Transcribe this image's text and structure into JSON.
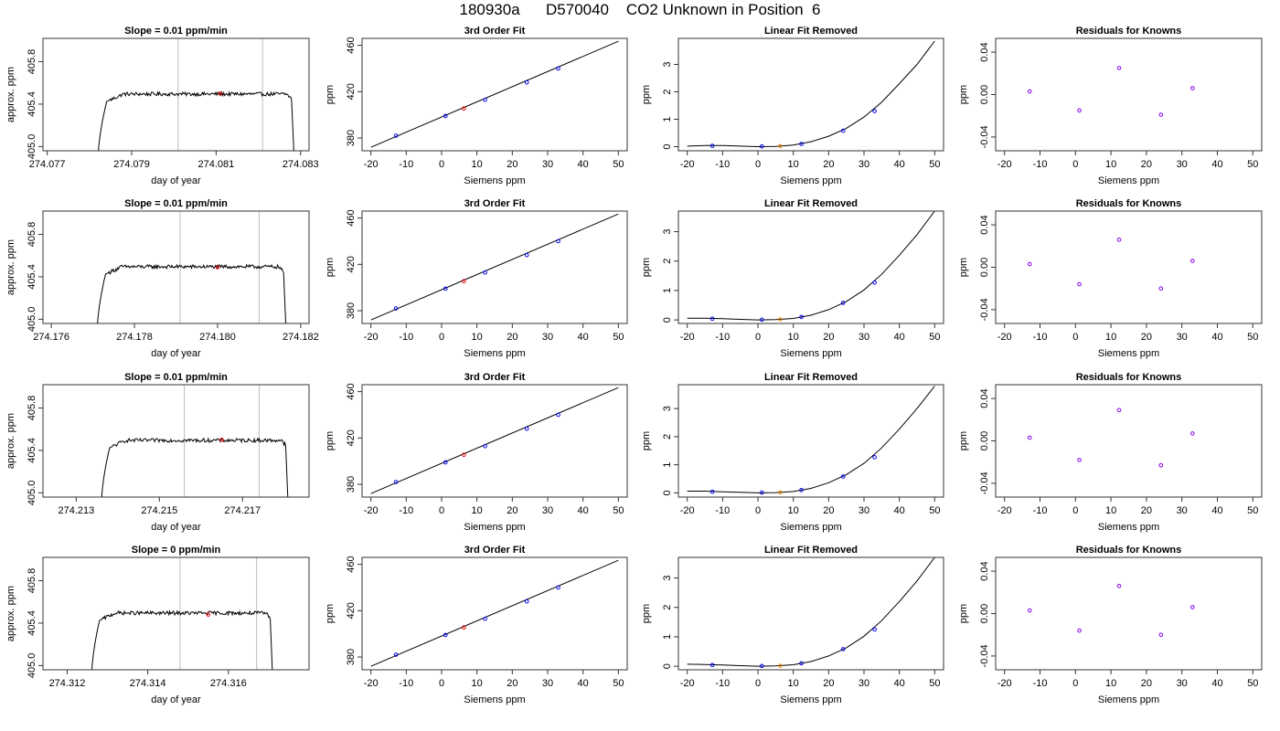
{
  "figure": {
    "title": "180930a      D570040    CO2 Unknown in Position  6",
    "colors": {
      "frame": "#333333",
      "line": "#000000",
      "vline": "#bbbbbb",
      "known": "#0000ee",
      "unknown": "#ee0000",
      "unknown_resid": "#ee8800",
      "resid": "#8800ee"
    }
  },
  "chart_data": [
    {
      "type": "line",
      "panel": "time-series",
      "row": 0,
      "title": "Slope =  0.01  ppm/min",
      "xlabel": "day of year",
      "ylabel": "approx. ppm",
      "xlim": [
        274.0769,
        274.0832
      ],
      "ylim": [
        404.96,
        406.02
      ],
      "xticks": [
        "274.077",
        "274.079",
        "274.081",
        "274.083"
      ],
      "xtick_values": [
        274.077,
        274.079,
        274.081,
        274.083
      ],
      "yticks": [
        "405.0",
        "405.4",
        "405.8"
      ],
      "ytick_values": [
        405.0,
        405.4,
        405.8
      ],
      "x_start": 274.0782,
      "x_end": 274.08285,
      "plateau": 405.495,
      "vlines": [
        274.0801,
        274.0821
      ],
      "marker": {
        "x": 274.0811,
        "y": 405.5
      }
    },
    {
      "type": "line",
      "panel": "time-series",
      "row": 1,
      "title": "Slope =  0.01  ppm/min",
      "xlabel": "day of year",
      "ylabel": "approx. ppm",
      "xlim": [
        274.1758,
        274.1822
      ],
      "ylim": [
        404.96,
        406.02
      ],
      "xticks": [
        "274.176",
        "274.178",
        "274.180",
        "274.182"
      ],
      "xtick_values": [
        274.176,
        274.178,
        274.18,
        274.182
      ],
      "yticks": [
        "405.0",
        "405.4",
        "405.8"
      ],
      "ytick_values": [
        405.0,
        405.4,
        405.8
      ],
      "x_start": 274.1771,
      "x_end": 274.18165,
      "plateau": 405.495,
      "vlines": [
        274.1791,
        274.181
      ],
      "marker": {
        "x": 274.18,
        "y": 405.49
      }
    },
    {
      "type": "line",
      "panel": "time-series",
      "row": 2,
      "title": "Slope =  0.01  ppm/min",
      "xlabel": "day of year",
      "ylabel": "approx. ppm",
      "xlim": [
        274.2122,
        274.2186
      ],
      "ylim": [
        404.96,
        406.02
      ],
      "xticks": [
        "274.213",
        "274.215",
        "274.217"
      ],
      "xtick_values": [
        274.213,
        274.215,
        274.217
      ],
      "yticks": [
        "405.0",
        "405.4",
        "405.8"
      ],
      "ytick_values": [
        405.0,
        405.4,
        405.8
      ],
      "x_start": 274.2136,
      "x_end": 274.2181,
      "plateau": 405.495,
      "vlines": [
        274.2156,
        274.2174
      ],
      "marker": {
        "x": 274.2165,
        "y": 405.5
      }
    },
    {
      "type": "line",
      "panel": "time-series",
      "row": 3,
      "title": "Slope =  0  ppm/min",
      "xlabel": "day of year",
      "ylabel": "approx. ppm",
      "xlim": [
        274.3114,
        274.318
      ],
      "ylim": [
        404.96,
        406.02
      ],
      "xticks": [
        "274.312",
        "274.314",
        "274.316"
      ],
      "xtick_values": [
        274.312,
        274.314,
        274.316
      ],
      "yticks": [
        "405.0",
        "405.4",
        "405.8"
      ],
      "ytick_values": [
        405.0,
        405.4,
        405.8
      ],
      "x_start": 274.3126,
      "x_end": 274.3171,
      "plateau": 405.495,
      "vlines": [
        274.3148,
        274.3167
      ],
      "marker": {
        "x": 274.3155,
        "y": 405.48
      }
    },
    {
      "type": "scatter",
      "panel": "fit",
      "row": 0,
      "title": "3rd Order Fit",
      "xlabel": "Siemens ppm",
      "ylabel": "ppm",
      "xlim": [
        -22.5,
        52.5
      ],
      "ylim": [
        369,
        466
      ],
      "xticks": [
        "-20",
        "-10",
        "0",
        "10",
        "20",
        "30",
        "40",
        "50"
      ],
      "xtick_values": [
        -20,
        -10,
        0,
        10,
        20,
        30,
        40,
        50
      ],
      "yticks": [
        "380",
        "420",
        "460"
      ],
      "ytick_values": [
        380,
        420,
        460
      ],
      "fit_line": {
        "x": [
          -20,
          50
        ],
        "y": [
          372.0,
          463.5
        ]
      },
      "knowns": {
        "x": [
          -12.9,
          1.1,
          12.3,
          24.1,
          33.0
        ],
        "y": [
          382.0,
          399.0,
          413.0,
          428.0,
          440.0
        ]
      },
      "unknown": {
        "x": 6.3,
        "y": 405.5
      }
    },
    {
      "type": "scatter",
      "panel": "fit",
      "row": 1,
      "title": "3rd Order Fit",
      "xlabel": "Siemens ppm",
      "ylabel": "ppm",
      "xlim": [
        -22.5,
        52.5
      ],
      "ylim": [
        369,
        466
      ],
      "xticks": [
        "-20",
        "-10",
        "0",
        "10",
        "20",
        "30",
        "40",
        "50"
      ],
      "xtick_values": [
        -20,
        -10,
        0,
        10,
        20,
        30,
        40,
        50
      ],
      "yticks": [
        "380",
        "420",
        "460"
      ],
      "ytick_values": [
        380,
        420,
        460
      ],
      "fit_line": {
        "x": [
          -20,
          50
        ],
        "y": [
          372.0,
          463.5
        ]
      },
      "knowns": {
        "x": [
          -12.9,
          1.1,
          12.3,
          24.1,
          33.0
        ],
        "y": [
          382.0,
          399.0,
          413.0,
          428.0,
          440.0
        ]
      },
      "unknown": {
        "x": 6.3,
        "y": 405.5
      }
    },
    {
      "type": "scatter",
      "panel": "fit",
      "row": 2,
      "title": "3rd Order Fit",
      "xlabel": "Siemens ppm",
      "ylabel": "ppm",
      "xlim": [
        -22.5,
        52.5
      ],
      "ylim": [
        369,
        466
      ],
      "xticks": [
        "-20",
        "-10",
        "0",
        "10",
        "20",
        "30",
        "40",
        "50"
      ],
      "xtick_values": [
        -20,
        -10,
        0,
        10,
        20,
        30,
        40,
        50
      ],
      "yticks": [
        "380",
        "420",
        "460"
      ],
      "ytick_values": [
        380,
        420,
        460
      ],
      "fit_line": {
        "x": [
          -20,
          50
        ],
        "y": [
          372.0,
          463.5
        ]
      },
      "knowns": {
        "x": [
          -12.9,
          1.1,
          12.3,
          24.1,
          33.0
        ],
        "y": [
          382.0,
          399.0,
          413.0,
          428.0,
          440.0
        ]
      },
      "unknown": {
        "x": 6.3,
        "y": 405.5
      }
    },
    {
      "type": "scatter",
      "panel": "fit",
      "row": 3,
      "title": "3rd Order Fit",
      "xlabel": "Siemens ppm",
      "ylabel": "ppm",
      "xlim": [
        -22.5,
        52.5
      ],
      "ylim": [
        369,
        466
      ],
      "xticks": [
        "-20",
        "-10",
        "0",
        "10",
        "20",
        "30",
        "40",
        "50"
      ],
      "xtick_values": [
        -20,
        -10,
        0,
        10,
        20,
        30,
        40,
        50
      ],
      "yticks": [
        "380",
        "420",
        "460"
      ],
      "ytick_values": [
        380,
        420,
        460
      ],
      "fit_line": {
        "x": [
          -20,
          50
        ],
        "y": [
          372.0,
          463.5
        ]
      },
      "knowns": {
        "x": [
          -12.9,
          1.1,
          12.3,
          24.1,
          33.0
        ],
        "y": [
          382.0,
          399.0,
          413.0,
          428.0,
          440.0
        ]
      },
      "unknown": {
        "x": 6.3,
        "y": 405.5
      }
    },
    {
      "type": "scatter",
      "panel": "linear-removed",
      "row": 0,
      "title": "Linear Fit Removed",
      "xlabel": "Siemens ppm",
      "ylabel": "ppm",
      "xlim": [
        -22.5,
        52.5
      ],
      "ylim": [
        -0.15,
        3.95
      ],
      "xticks": [
        "-20",
        "-10",
        "0",
        "10",
        "20",
        "30",
        "40",
        "50"
      ],
      "xtick_values": [
        -20,
        -10,
        0,
        10,
        20,
        30,
        40,
        50
      ],
      "yticks": [
        "0",
        "1",
        "2",
        "3"
      ],
      "ytick_values": [
        0,
        1,
        2,
        3
      ],
      "curve": {
        "x": [
          -20,
          -15,
          -10,
          -5,
          0,
          5,
          10,
          15,
          20,
          25,
          30,
          35,
          40,
          45,
          50
        ],
        "y": [
          0.02,
          0.04,
          0.04,
          0.02,
          0.0,
          0.01,
          0.06,
          0.18,
          0.38,
          0.67,
          1.08,
          1.62,
          2.3,
          3.0,
          3.85
        ]
      },
      "knowns": {
        "x": [
          -12.9,
          1.1,
          12.3,
          24.1,
          33.0
        ],
        "y": [
          0.03,
          0.01,
          0.1,
          0.58,
          1.3
        ]
      },
      "unknown": {
        "x": 6.3,
        "y": 0.02
      }
    },
    {
      "type": "scatter",
      "panel": "linear-removed",
      "row": 1,
      "title": "Linear Fit Removed",
      "xlabel": "Siemens ppm",
      "ylabel": "ppm",
      "xlim": [
        -22.5,
        52.5
      ],
      "ylim": [
        -0.12,
        3.7
      ],
      "xticks": [
        "-20",
        "-10",
        "0",
        "10",
        "20",
        "30",
        "40",
        "50"
      ],
      "xtick_values": [
        -20,
        -10,
        0,
        10,
        20,
        30,
        40,
        50
      ],
      "yticks": [
        "0",
        "1",
        "2",
        "3"
      ],
      "ytick_values": [
        0,
        1,
        2,
        3
      ],
      "curve": {
        "x": [
          -20,
          -15,
          -10,
          -5,
          0,
          5,
          10,
          15,
          20,
          25,
          30,
          35,
          40,
          45,
          50
        ],
        "y": [
          0.06,
          0.06,
          0.04,
          0.02,
          0.0,
          0.01,
          0.05,
          0.16,
          0.35,
          0.63,
          1.02,
          1.55,
          2.2,
          2.9,
          3.7
        ]
      },
      "knowns": {
        "x": [
          -12.9,
          1.1,
          12.3,
          24.1,
          33.0
        ],
        "y": [
          0.04,
          0.01,
          0.1,
          0.58,
          1.27
        ]
      },
      "unknown": {
        "x": 6.3,
        "y": 0.02
      }
    },
    {
      "type": "scatter",
      "panel": "linear-removed",
      "row": 2,
      "title": "Linear Fit Removed",
      "xlabel": "Siemens ppm",
      "ylabel": "ppm",
      "xlim": [
        -22.5,
        52.5
      ],
      "ylim": [
        -0.15,
        3.85
      ],
      "xticks": [
        "-20",
        "-10",
        "0",
        "10",
        "20",
        "30",
        "40",
        "50"
      ],
      "xtick_values": [
        -20,
        -10,
        0,
        10,
        20,
        30,
        40,
        50
      ],
      "yticks": [
        "0",
        "1",
        "2",
        "3"
      ],
      "ytick_values": [
        0,
        1,
        2,
        3
      ],
      "curve": {
        "x": [
          -20,
          -15,
          -10,
          -5,
          0,
          5,
          10,
          15,
          20,
          25,
          30,
          35,
          40,
          45,
          50
        ],
        "y": [
          0.06,
          0.06,
          0.04,
          0.02,
          0.0,
          0.01,
          0.05,
          0.16,
          0.36,
          0.65,
          1.05,
          1.6,
          2.27,
          3.0,
          3.8
        ]
      },
      "knowns": {
        "x": [
          -12.9,
          1.1,
          12.3,
          24.1,
          33.0
        ],
        "y": [
          0.04,
          0.01,
          0.1,
          0.58,
          1.27
        ]
      },
      "unknown": {
        "x": 6.3,
        "y": 0.02
      }
    },
    {
      "type": "scatter",
      "panel": "linear-removed",
      "row": 3,
      "title": "Linear Fit Removed",
      "xlabel": "Siemens ppm",
      "ylabel": "ppm",
      "xlim": [
        -22.5,
        52.5
      ],
      "ylim": [
        -0.12,
        3.7
      ],
      "xticks": [
        "-20",
        "-10",
        "0",
        "10",
        "20",
        "30",
        "40",
        "50"
      ],
      "xtick_values": [
        -20,
        -10,
        0,
        10,
        20,
        30,
        40,
        50
      ],
      "yticks": [
        "0",
        "1",
        "2",
        "3"
      ],
      "ytick_values": [
        0,
        1,
        2,
        3
      ],
      "curve": {
        "x": [
          -20,
          -15,
          -10,
          -5,
          0,
          5,
          10,
          15,
          20,
          25,
          30,
          35,
          40,
          45,
          50
        ],
        "y": [
          0.07,
          0.06,
          0.04,
          0.02,
          0.0,
          0.01,
          0.05,
          0.16,
          0.35,
          0.63,
          1.02,
          1.55,
          2.2,
          2.9,
          3.7
        ]
      },
      "knowns": {
        "x": [
          -12.9,
          1.1,
          12.3,
          24.1,
          33.0
        ],
        "y": [
          0.04,
          0.01,
          0.1,
          0.58,
          1.25
        ]
      },
      "unknown": {
        "x": 6.3,
        "y": 0.02
      }
    },
    {
      "type": "scatter",
      "panel": "residuals",
      "row": 0,
      "title": "Residuals for Knowns",
      "xlabel": "Siemens ppm",
      "ylabel": "ppm",
      "xlim": [
        -22.5,
        52.5
      ],
      "ylim": [
        -0.053,
        0.053
      ],
      "xticks": [
        "-20",
        "-10",
        "0",
        "10",
        "20",
        "30",
        "40",
        "50"
      ],
      "xtick_values": [
        -20,
        -10,
        0,
        10,
        20,
        30,
        40,
        50
      ],
      "yticks": [
        "-0.04",
        "0.00",
        "0.04"
      ],
      "ytick_values": [
        -0.04,
        0.0,
        0.04
      ],
      "knowns": {
        "x": [
          -12.9,
          1.1,
          12.3,
          24.1,
          33.0
        ],
        "y": [
          0.003,
          -0.015,
          0.025,
          -0.019,
          0.006
        ]
      }
    },
    {
      "type": "scatter",
      "panel": "residuals",
      "row": 1,
      "title": "Residuals for Knowns",
      "xlabel": "Siemens ppm",
      "ylabel": "ppm",
      "xlim": [
        -22.5,
        52.5
      ],
      "ylim": [
        -0.053,
        0.053
      ],
      "xticks": [
        "-20",
        "-10",
        "0",
        "10",
        "20",
        "30",
        "40",
        "50"
      ],
      "xtick_values": [
        -20,
        -10,
        0,
        10,
        20,
        30,
        40,
        50
      ],
      "yticks": [
        "-0.04",
        "0.00",
        "0.04"
      ],
      "ytick_values": [
        -0.04,
        0.0,
        0.04
      ],
      "knowns": {
        "x": [
          -12.9,
          1.1,
          12.3,
          24.1,
          33.0
        ],
        "y": [
          0.003,
          -0.016,
          0.026,
          -0.02,
          0.006
        ]
      }
    },
    {
      "type": "scatter",
      "panel": "residuals",
      "row": 2,
      "title": "Residuals for Knowns",
      "xlabel": "Siemens ppm",
      "ylabel": "ppm",
      "xlim": [
        -22.5,
        52.5
      ],
      "ylim": [
        -0.053,
        0.053
      ],
      "xticks": [
        "-20",
        "-10",
        "0",
        "10",
        "20",
        "30",
        "40",
        "50"
      ],
      "xtick_values": [
        -20,
        -10,
        0,
        10,
        20,
        30,
        40,
        50
      ],
      "yticks": [
        "-0.04",
        "0.00",
        "0.04"
      ],
      "ytick_values": [
        -0.04,
        0.0,
        0.04
      ],
      "knowns": {
        "x": [
          -12.9,
          1.1,
          12.3,
          24.1,
          33.0
        ],
        "y": [
          0.003,
          -0.018,
          0.029,
          -0.023,
          0.007
        ]
      }
    },
    {
      "type": "scatter",
      "panel": "residuals",
      "row": 3,
      "title": "Residuals for Knowns",
      "xlabel": "Siemens ppm",
      "ylabel": "ppm",
      "xlim": [
        -22.5,
        52.5
      ],
      "ylim": [
        -0.053,
        0.053
      ],
      "xticks": [
        "-20",
        "-10",
        "0",
        "10",
        "20",
        "30",
        "40",
        "50"
      ],
      "xtick_values": [
        -20,
        -10,
        0,
        10,
        20,
        30,
        40,
        50
      ],
      "yticks": [
        "-0.04",
        "0.00",
        "0.04"
      ],
      "ytick_values": [
        -0.04,
        0.0,
        0.04
      ],
      "knowns": {
        "x": [
          -12.9,
          1.1,
          12.3,
          24.1,
          33.0
        ],
        "y": [
          0.003,
          -0.016,
          0.026,
          -0.02,
          0.006
        ]
      }
    }
  ]
}
